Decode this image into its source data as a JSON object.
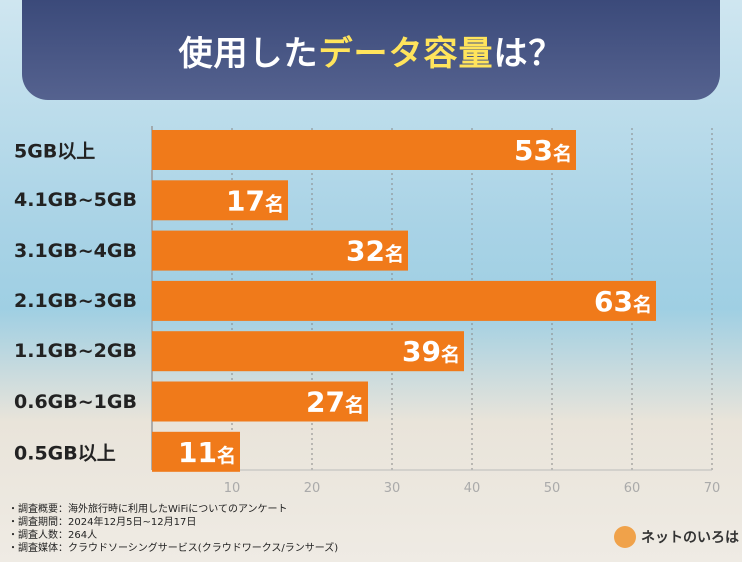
{
  "title": {
    "prefix": "使用した",
    "highlight": "データ容量",
    "suffix": "は？"
  },
  "chart_data": {
    "type": "bar",
    "orientation": "horizontal",
    "categories": [
      "5GB以上",
      "4.1GB~5GB",
      "3.1GB~4GB",
      "2.1GB~3GB",
      "1.1GB~2GB",
      "0.6GB~1GB",
      "0.5GB以上"
    ],
    "values": [
      53,
      17,
      32,
      63,
      39,
      27,
      11
    ],
    "value_suffix": "名",
    "xlim": [
      0,
      70
    ],
    "xticks": [
      10,
      20,
      30,
      40,
      50,
      60,
      70
    ],
    "grid": true,
    "bar_color": "#f07a1a"
  },
  "footer": [
    "・調査概要：海外旅行時に利用したWiFiについてのアンケート",
    "・調査期間：2024年12月5日~12月17日",
    "・調査人数：264人",
    "・調査媒体：クラウドソーシングサービス(クラウドワークス/ランサーズ)"
  ],
  "logo": {
    "text": "ネットのいろは"
  }
}
